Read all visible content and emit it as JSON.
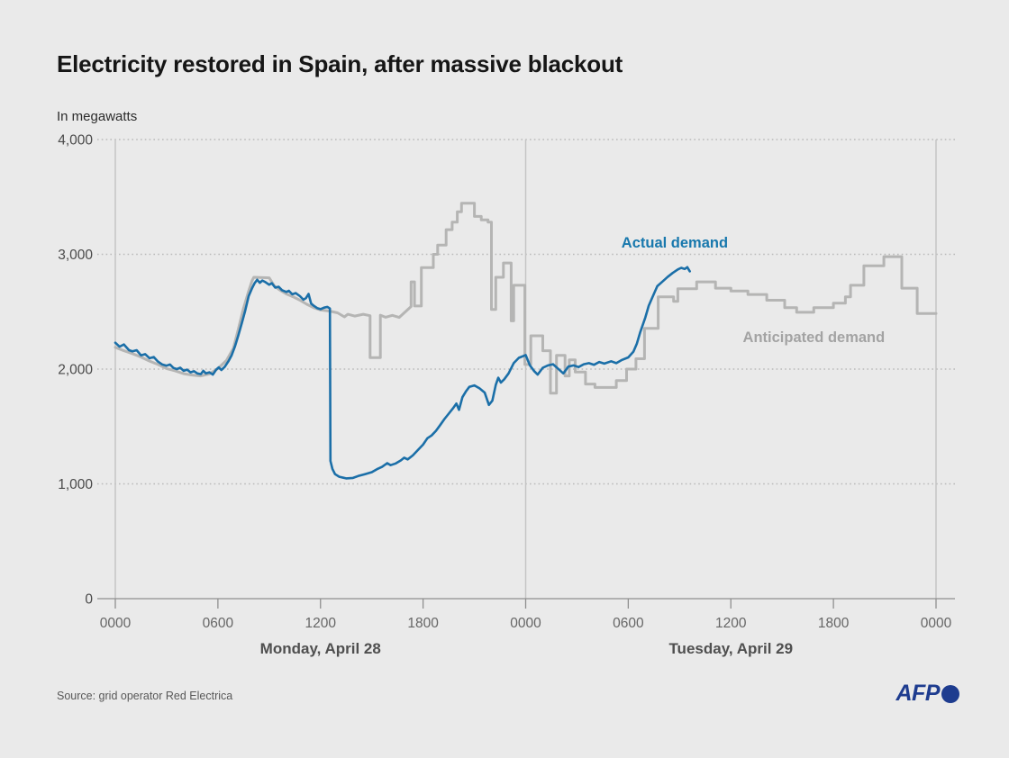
{
  "header": {
    "title": "Electricity restored in Spain, after massive blackout",
    "unit_label": "In megawatts"
  },
  "footer": {
    "source": "Source: grid operator Red Electrica",
    "logo_text": "AFP"
  },
  "colors": {
    "background": "#eaeaea",
    "actual": "#1b6fa8",
    "anticipated": "#b5b5b4",
    "actual_label": "#1878ad",
    "anticipated_label": "#a3a3a3",
    "grid": "#b9b9b9",
    "border": "#c5c5c5",
    "axis_line": "#8f8f8f",
    "axis_text": "#4a4a4a",
    "tick_text": "#666666",
    "day_text": "#4f4f4f",
    "afp_blue": "#1e3c8f"
  },
  "chart_data": {
    "type": "line",
    "title": "Electricity restored in Spain, after massive blackout",
    "ylabel": "In megawatts",
    "xlabel": "",
    "x_unit": "hours since Monday April 28, 00:00",
    "xlim": [
      0,
      48
    ],
    "ylim": [
      0,
      4000
    ],
    "grid": "dotted horizontal",
    "legend_position": "inline annotations",
    "y_ticks": [
      {
        "value": 0,
        "label": "0"
      },
      {
        "value": 1000,
        "label": "1,000"
      },
      {
        "value": 2000,
        "label": "2,000"
      },
      {
        "value": 3000,
        "label": "3,000"
      },
      {
        "value": 4000,
        "label": "4,000"
      }
    ],
    "x_ticks": [
      {
        "h": 0,
        "label": "0000"
      },
      {
        "h": 6,
        "label": "0600"
      },
      {
        "h": 12,
        "label": "1200"
      },
      {
        "h": 18,
        "label": "1800"
      },
      {
        "h": 24,
        "label": "0000"
      },
      {
        "h": 30,
        "label": "0600"
      },
      {
        "h": 36,
        "label": "1200"
      },
      {
        "h": 42,
        "label": "1800"
      },
      {
        "h": 48,
        "label": "0000"
      }
    ],
    "day_labels": [
      {
        "h": 12,
        "label": "Monday, April 28"
      },
      {
        "h": 36,
        "label": "Tuesday, April 29"
      }
    ],
    "day_divider_h": 24,
    "annotations": [
      {
        "text": "Actual demand",
        "x_h": 29.6,
        "y_mw": 3060,
        "color_key": "actual_label"
      },
      {
        "text": "Anticipated demand",
        "x_h": 36.7,
        "y_mw": 2235,
        "color_key": "anticipated_label"
      }
    ],
    "series": [
      {
        "name": "Anticipated demand",
        "color_key": "anticipated",
        "stroke_width": 3,
        "points": [
          [
            0,
            2190
          ],
          [
            0.5,
            2160
          ],
          [
            1,
            2135
          ],
          [
            1.5,
            2105
          ],
          [
            2,
            2070
          ],
          [
            2.5,
            2040
          ],
          [
            3,
            2005
          ],
          [
            3.5,
            1985
          ],
          [
            4,
            1960
          ],
          [
            4.5,
            1948
          ],
          [
            5,
            1940
          ],
          [
            5.5,
            1958
          ],
          [
            6,
            2005
          ],
          [
            6.5,
            2075
          ],
          [
            6.9,
            2180
          ],
          [
            7.2,
            2350
          ],
          [
            7.5,
            2530
          ],
          [
            7.8,
            2680
          ],
          [
            8,
            2770
          ],
          [
            8.1,
            2800
          ],
          [
            9,
            2795
          ],
          [
            9.3,
            2725
          ],
          [
            9.6,
            2690
          ],
          [
            10,
            2655
          ],
          [
            10.4,
            2630
          ],
          [
            10.8,
            2600
          ],
          [
            11.2,
            2565
          ],
          [
            11.6,
            2535
          ],
          [
            12,
            2515
          ],
          [
            12.55,
            2505
          ],
          [
            13,
            2490
          ],
          [
            13.4,
            2455
          ],
          [
            13.6,
            2478
          ],
          [
            14,
            2462
          ],
          [
            14.5,
            2478
          ],
          [
            14.9,
            2465
          ],
          [
            14.9,
            2100
          ],
          [
            15.5,
            2100
          ],
          [
            15.5,
            2470
          ],
          [
            15.8,
            2452
          ],
          [
            16.2,
            2468
          ],
          [
            16.6,
            2450
          ],
          [
            17.3,
            2545
          ],
          [
            17.3,
            2760
          ],
          [
            17.5,
            2760
          ],
          [
            17.5,
            2550
          ],
          [
            17.9,
            2550
          ],
          [
            17.9,
            2885
          ],
          [
            18.6,
            2885
          ],
          [
            18.6,
            3000
          ],
          [
            18.85,
            3000
          ],
          [
            18.85,
            3080
          ],
          [
            19.35,
            3080
          ],
          [
            19.35,
            3215
          ],
          [
            19.7,
            3215
          ],
          [
            19.7,
            3280
          ],
          [
            20,
            3280
          ],
          [
            20,
            3370
          ],
          [
            20.25,
            3370
          ],
          [
            20.25,
            3445
          ],
          [
            21,
            3445
          ],
          [
            21,
            3330
          ],
          [
            21.4,
            3330
          ],
          [
            21.4,
            3300
          ],
          [
            21.8,
            3300
          ],
          [
            21.8,
            3280
          ],
          [
            22,
            3280
          ],
          [
            22,
            2520
          ],
          [
            22.25,
            2520
          ],
          [
            22.25,
            2800
          ],
          [
            22.7,
            2800
          ],
          [
            22.7,
            2925
          ],
          [
            23.15,
            2925
          ],
          [
            23.15,
            2420
          ],
          [
            23.3,
            2420
          ],
          [
            23.3,
            2730
          ],
          [
            23.95,
            2730
          ],
          [
            23.95,
            2040
          ],
          [
            24.3,
            2040
          ],
          [
            24.3,
            2290
          ],
          [
            25,
            2290
          ],
          [
            25,
            2160
          ],
          [
            25.45,
            2160
          ],
          [
            25.45,
            1790
          ],
          [
            25.8,
            1790
          ],
          [
            25.8,
            2120
          ],
          [
            26.3,
            2120
          ],
          [
            26.3,
            1940
          ],
          [
            26.55,
            1940
          ],
          [
            26.55,
            2080
          ],
          [
            26.9,
            2080
          ],
          [
            26.9,
            1975
          ],
          [
            27.5,
            1975
          ],
          [
            27.5,
            1870
          ],
          [
            28.05,
            1870
          ],
          [
            28.05,
            1840
          ],
          [
            29.3,
            1840
          ],
          [
            29.3,
            1900
          ],
          [
            29.9,
            1900
          ],
          [
            29.9,
            2000
          ],
          [
            30.45,
            2000
          ],
          [
            30.45,
            2090
          ],
          [
            30.95,
            2090
          ],
          [
            30.95,
            2355
          ],
          [
            31.75,
            2355
          ],
          [
            31.75,
            2630
          ],
          [
            32.65,
            2630
          ],
          [
            32.65,
            2590
          ],
          [
            32.9,
            2590
          ],
          [
            32.9,
            2700
          ],
          [
            34,
            2700
          ],
          [
            34,
            2760
          ],
          [
            35.1,
            2760
          ],
          [
            35.1,
            2705
          ],
          [
            36,
            2705
          ],
          [
            36,
            2680
          ],
          [
            37,
            2680
          ],
          [
            37,
            2650
          ],
          [
            38.1,
            2650
          ],
          [
            38.1,
            2600
          ],
          [
            39.15,
            2600
          ],
          [
            39.15,
            2535
          ],
          [
            39.85,
            2535
          ],
          [
            39.85,
            2495
          ],
          [
            40.85,
            2495
          ],
          [
            40.85,
            2535
          ],
          [
            42,
            2535
          ],
          [
            42,
            2575
          ],
          [
            42.7,
            2575
          ],
          [
            42.7,
            2630
          ],
          [
            43,
            2630
          ],
          [
            43,
            2730
          ],
          [
            43.78,
            2730
          ],
          [
            43.78,
            2900
          ],
          [
            44.95,
            2900
          ],
          [
            44.95,
            2980
          ],
          [
            46,
            2980
          ],
          [
            46,
            2705
          ],
          [
            46.9,
            2705
          ],
          [
            46.9,
            2485
          ],
          [
            48,
            2485
          ]
        ]
      },
      {
        "name": "Actual demand",
        "color_key": "actual",
        "stroke_width": 2.6,
        "points": [
          [
            0,
            2230
          ],
          [
            0.25,
            2195
          ],
          [
            0.5,
            2215
          ],
          [
            0.8,
            2165
          ],
          [
            1,
            2155
          ],
          [
            1.25,
            2165
          ],
          [
            1.5,
            2120
          ],
          [
            1.75,
            2130
          ],
          [
            2,
            2095
          ],
          [
            2.25,
            2105
          ],
          [
            2.5,
            2065
          ],
          [
            2.75,
            2040
          ],
          [
            3,
            2030
          ],
          [
            3.2,
            2040
          ],
          [
            3.4,
            2010
          ],
          [
            3.6,
            2000
          ],
          [
            3.8,
            2012
          ],
          [
            4,
            1985
          ],
          [
            4.2,
            1995
          ],
          [
            4.4,
            1972
          ],
          [
            4.6,
            1982
          ],
          [
            4.8,
            1962
          ],
          [
            5,
            1956
          ],
          [
            5.15,
            1985
          ],
          [
            5.3,
            1962
          ],
          [
            5.5,
            1972
          ],
          [
            5.7,
            1952
          ],
          [
            5.9,
            1995
          ],
          [
            6.05,
            2015
          ],
          [
            6.2,
            1992
          ],
          [
            6.4,
            2020
          ],
          [
            6.6,
            2065
          ],
          [
            6.8,
            2120
          ],
          [
            7,
            2200
          ],
          [
            7.2,
            2295
          ],
          [
            7.4,
            2400
          ],
          [
            7.6,
            2510
          ],
          [
            7.8,
            2635
          ],
          [
            8,
            2705
          ],
          [
            8.15,
            2750
          ],
          [
            8.3,
            2778
          ],
          [
            8.45,
            2752
          ],
          [
            8.6,
            2772
          ],
          [
            8.75,
            2760
          ],
          [
            9,
            2735
          ],
          [
            9.15,
            2748
          ],
          [
            9.35,
            2710
          ],
          [
            9.55,
            2718
          ],
          [
            9.75,
            2688
          ],
          [
            10,
            2672
          ],
          [
            10.15,
            2682
          ],
          [
            10.35,
            2652
          ],
          [
            10.55,
            2662
          ],
          [
            10.8,
            2635
          ],
          [
            11,
            2605
          ],
          [
            11.15,
            2618
          ],
          [
            11.3,
            2655
          ],
          [
            11.45,
            2572
          ],
          [
            11.6,
            2552
          ],
          [
            11.8,
            2532
          ],
          [
            12,
            2522
          ],
          [
            12.2,
            2535
          ],
          [
            12.4,
            2542
          ],
          [
            12.55,
            2528
          ],
          [
            12.58,
            1200
          ],
          [
            12.7,
            1130
          ],
          [
            12.85,
            1085
          ],
          [
            13.1,
            1062
          ],
          [
            13.5,
            1048
          ],
          [
            13.9,
            1052
          ],
          [
            14.2,
            1068
          ],
          [
            14.6,
            1085
          ],
          [
            15,
            1102
          ],
          [
            15.3,
            1128
          ],
          [
            15.6,
            1148
          ],
          [
            15.9,
            1180
          ],
          [
            16.1,
            1163
          ],
          [
            16.4,
            1178
          ],
          [
            16.7,
            1205
          ],
          [
            16.9,
            1228
          ],
          [
            17.1,
            1213
          ],
          [
            17.4,
            1248
          ],
          [
            17.7,
            1295
          ],
          [
            18,
            1342
          ],
          [
            18.25,
            1398
          ],
          [
            18.5,
            1422
          ],
          [
            18.75,
            1462
          ],
          [
            19,
            1512
          ],
          [
            19.25,
            1565
          ],
          [
            19.5,
            1612
          ],
          [
            19.75,
            1658
          ],
          [
            19.95,
            1700
          ],
          [
            20.1,
            1645
          ],
          [
            20.3,
            1755
          ],
          [
            20.5,
            1805
          ],
          [
            20.7,
            1845
          ],
          [
            21,
            1858
          ],
          [
            21.3,
            1832
          ],
          [
            21.6,
            1795
          ],
          [
            21.85,
            1688
          ],
          [
            22.05,
            1725
          ],
          [
            22.25,
            1862
          ],
          [
            22.4,
            1925
          ],
          [
            22.55,
            1882
          ],
          [
            22.75,
            1912
          ],
          [
            23,
            1962
          ],
          [
            23.3,
            2052
          ],
          [
            23.6,
            2098
          ],
          [
            24,
            2122
          ],
          [
            24.25,
            2032
          ],
          [
            24.5,
            1982
          ],
          [
            24.7,
            1952
          ],
          [
            25,
            2012
          ],
          [
            25.3,
            2032
          ],
          [
            25.6,
            2042
          ],
          [
            25.9,
            2002
          ],
          [
            26.2,
            1962
          ],
          [
            26.5,
            2022
          ],
          [
            26.8,
            2032
          ],
          [
            27.1,
            2018
          ],
          [
            27.4,
            2042
          ],
          [
            27.7,
            2052
          ],
          [
            28,
            2038
          ],
          [
            28.3,
            2062
          ],
          [
            28.6,
            2048
          ],
          [
            29,
            2068
          ],
          [
            29.3,
            2052
          ],
          [
            29.6,
            2078
          ],
          [
            30,
            2102
          ],
          [
            30.3,
            2152
          ],
          [
            30.5,
            2222
          ],
          [
            30.7,
            2322
          ],
          [
            31,
            2452
          ],
          [
            31.2,
            2552
          ],
          [
            31.5,
            2655
          ],
          [
            31.7,
            2722
          ],
          [
            32,
            2762
          ],
          [
            32.3,
            2802
          ],
          [
            32.6,
            2838
          ],
          [
            32.9,
            2868
          ],
          [
            33.1,
            2882
          ],
          [
            33.3,
            2872
          ],
          [
            33.45,
            2888
          ],
          [
            33.6,
            2852
          ]
        ]
      }
    ]
  }
}
